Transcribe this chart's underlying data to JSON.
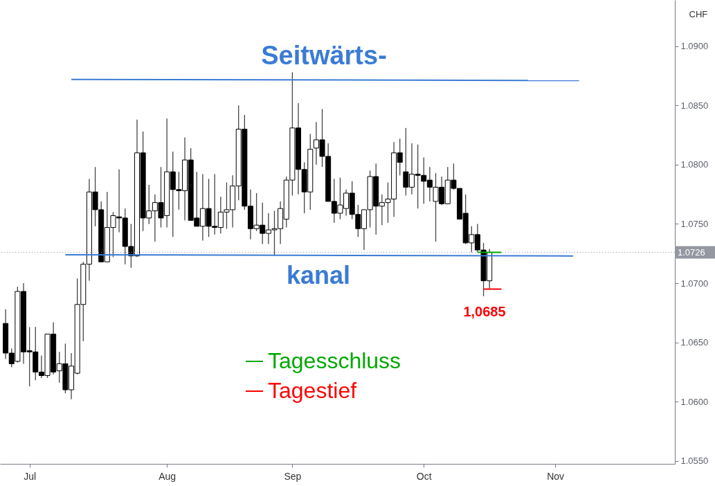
{
  "chart_data": {
    "type": "candlestick",
    "ylabel": "CHF",
    "categories": [
      null,
      null,
      null,
      null,
      "Jul",
      null,
      null,
      null,
      null,
      null,
      null,
      null,
      null,
      null,
      null,
      null,
      null,
      null,
      null,
      null,
      null,
      null,
      null,
      null,
      null,
      null,
      null,
      "Aug",
      null,
      null,
      null,
      null,
      null,
      null,
      null,
      null,
      null,
      null,
      null,
      null,
      null,
      null,
      null,
      null,
      null,
      null,
      null,
      null,
      "Sep",
      null,
      null,
      null,
      null,
      null,
      null,
      null,
      null,
      null,
      null,
      null,
      null,
      null,
      null,
      null,
      null,
      null,
      null,
      null,
      null,
      null,
      "Oct",
      null,
      null,
      null,
      null,
      null,
      null,
      null,
      null,
      null,
      null,
      null,
      null,
      null,
      null,
      null,
      null,
      null,
      null,
      null,
      null,
      null,
      "Nov",
      null,
      null,
      null,
      null,
      null,
      null,
      null,
      null,
      null,
      null,
      null,
      null,
      null,
      null,
      null,
      null,
      null,
      null,
      null
    ],
    "ohlc": [
      [
        1.0666,
        1.0678,
        1.0636,
        1.0641
      ],
      [
        1.0641,
        1.0645,
        1.0629,
        1.0632
      ],
      [
        1.0634,
        1.0697,
        1.0633,
        1.0693
      ],
      [
        1.0693,
        1.07,
        1.0632,
        1.0642
      ],
      [
        1.0643,
        1.0663,
        1.0613,
        1.0642
      ],
      [
        1.0642,
        1.0663,
        1.0618,
        1.0625
      ],
      [
        1.0625,
        1.0639,
        1.062,
        1.0622
      ],
      [
        1.0622,
        1.0657,
        1.062,
        1.0657
      ],
      [
        1.0657,
        1.0667,
        1.0623,
        1.0625
      ],
      [
        1.0626,
        1.0642,
        1.0616,
        1.0632
      ],
      [
        1.0632,
        1.0649,
        1.0607,
        1.061
      ],
      [
        1.061,
        1.0641,
        1.0602,
        1.063
      ],
      [
        1.0624,
        1.0704,
        1.0623,
        1.0682
      ],
      [
        1.0682,
        1.0718,
        1.0651,
        1.0716
      ],
      [
        1.0716,
        1.0788,
        1.0702,
        1.0777
      ],
      [
        1.0777,
        1.0798,
        1.0748,
        1.0762
      ],
      [
        1.0762,
        1.0769,
        1.0718,
        1.0718
      ],
      [
        1.0718,
        1.0777,
        1.0718,
        1.0747
      ],
      [
        1.0747,
        1.076,
        1.0722,
        1.0757
      ],
      [
        1.0756,
        1.0796,
        1.0743,
        1.0755
      ],
      [
        1.0755,
        1.0763,
        1.0716,
        1.0731
      ],
      [
        1.0731,
        1.075,
        1.0713,
        1.0723
      ],
      [
        1.0723,
        1.0838,
        1.0722,
        1.081
      ],
      [
        1.081,
        1.0828,
        1.0744,
        1.0755
      ],
      [
        1.0755,
        1.0783,
        1.075,
        1.0761
      ],
      [
        1.0761,
        1.0775,
        1.0735,
        1.0768
      ],
      [
        1.0768,
        1.0798,
        1.0747,
        1.0755
      ],
      [
        1.0757,
        1.0839,
        1.0747,
        1.0794
      ],
      [
        1.0794,
        1.0811,
        1.0739,
        1.0779
      ],
      [
        1.0779,
        1.0794,
        1.0762,
        1.0778
      ],
      [
        1.0778,
        1.0823,
        1.0753,
        1.0804
      ],
      [
        1.0804,
        1.0814,
        1.0753,
        1.0753
      ],
      [
        1.0755,
        1.0794,
        1.0748,
        1.0748
      ],
      [
        1.0748,
        1.0792,
        1.0736,
        1.0763
      ],
      [
        1.0763,
        1.0788,
        1.0739,
        1.0748
      ],
      [
        1.0748,
        1.0792,
        1.0741,
        1.0747
      ],
      [
        1.0747,
        1.0773,
        1.0742,
        1.076
      ],
      [
        1.076,
        1.0785,
        1.0746,
        1.0762
      ],
      [
        1.0762,
        1.0791,
        1.0747,
        1.0782
      ],
      [
        1.0782,
        1.085,
        1.077,
        1.083
      ],
      [
        1.083,
        1.0842,
        1.0762,
        1.0765
      ],
      [
        1.0765,
        1.0779,
        1.0737,
        1.0746
      ],
      [
        1.0746,
        1.0776,
        1.0744,
        1.0749
      ],
      [
        1.0749,
        1.0768,
        1.0733,
        1.0742
      ],
      [
        1.0742,
        1.0759,
        1.0733,
        1.0745
      ],
      [
        1.0745,
        1.0761,
        1.0723,
        1.0746
      ],
      [
        1.0746,
        1.0769,
        1.0733,
        1.0763
      ],
      [
        1.0754,
        1.079,
        1.0747,
        1.0787
      ],
      [
        1.0787,
        1.0878,
        1.0774,
        1.0831
      ],
      [
        1.0831,
        1.0852,
        1.0775,
        1.0796
      ],
      [
        1.0796,
        1.0802,
        1.0759,
        1.0777
      ],
      [
        1.0777,
        1.0826,
        1.0762,
        1.0813
      ],
      [
        1.0814,
        1.0836,
        1.08,
        1.0821
      ],
      [
        1.0821,
        1.0847,
        1.0798,
        1.0807
      ],
      [
        1.0807,
        1.0818,
        1.0769,
        1.0769
      ],
      [
        1.0769,
        1.0788,
        1.0751,
        1.0759
      ],
      [
        1.0759,
        1.0789,
        1.0754,
        1.0766
      ],
      [
        1.0763,
        1.0779,
        1.0757,
        1.0776
      ],
      [
        1.0776,
        1.0786,
        1.0754,
        1.0758
      ],
      [
        1.0758,
        1.0766,
        1.0739,
        1.0746
      ],
      [
        1.0746,
        1.0762,
        1.0728,
        1.0762
      ],
      [
        1.0762,
        1.0795,
        1.0747,
        1.079
      ],
      [
        1.079,
        1.0801,
        1.0741,
        1.0765
      ],
      [
        1.0765,
        1.0775,
        1.0749,
        1.0768
      ],
      [
        1.0768,
        1.0785,
        1.0751,
        1.0771
      ],
      [
        1.0771,
        1.0819,
        1.0756,
        1.081
      ],
      [
        1.081,
        1.0822,
        1.0791,
        1.0802
      ],
      [
        1.0794,
        1.0831,
        1.0774,
        1.0781
      ],
      [
        1.0781,
        1.0818,
        1.0775,
        1.0792
      ],
      [
        1.0792,
        1.0817,
        1.0763,
        1.0791
      ],
      [
        1.0791,
        1.0806,
        1.0767,
        1.0786
      ],
      [
        1.0787,
        1.0798,
        1.0769,
        1.0781
      ],
      [
        1.0769,
        1.0793,
        1.0735,
        1.0781
      ],
      [
        1.0781,
        1.079,
        1.0766,
        1.0767
      ],
      [
        1.0767,
        1.0798,
        1.0767,
        1.0787
      ],
      [
        1.0787,
        1.0801,
        1.0779,
        1.078
      ],
      [
        1.078,
        1.078,
        1.0754,
        1.0754
      ],
      [
        1.0759,
        1.0775,
        1.0733,
        1.0734
      ],
      [
        1.0734,
        1.0748,
        1.0726,
        1.0741
      ],
      [
        1.0741,
        1.075,
        1.0726,
        1.0728
      ],
      [
        1.0728,
        1.0734,
        1.0689,
        1.0702
      ],
      [
        1.0702,
        1.0729,
        1.0695,
        1.0726
      ],
      null,
      null,
      null,
      null,
      null,
      null,
      null,
      null,
      null,
      null,
      null,
      null,
      null,
      null,
      null,
      null,
      null,
      null,
      null,
      null,
      null,
      null,
      null,
      null,
      null,
      null,
      null,
      null,
      null,
      null
    ],
    "colors": [
      "#000000",
      "#000000",
      "#ffffff",
      "#000000",
      "#000000",
      "#000000",
      "#000000",
      "#ffffff",
      "#000000",
      "#ffffff",
      "#000000",
      "#ffffff",
      "#ffffff",
      "#ffffff",
      "#ffffff",
      "#000000",
      "#000000",
      "#ffffff",
      "#ffffff",
      "#000000",
      "#000000",
      "#000000",
      "#ffffff",
      "#000000",
      "#ffffff",
      "#ffffff",
      "#000000",
      "#ffffff",
      "#000000",
      "#000000",
      "#ffffff",
      "#000000",
      "#000000",
      "#ffffff",
      "#000000",
      "#000000",
      "#ffffff",
      "#ffffff",
      "#ffffff",
      "#ffffff",
      "#000000",
      "#000000",
      "#ffffff",
      "#000000",
      "#ffffff",
      "#ffffff",
      "#ffffff",
      "#ffffff",
      "#ffffff",
      "#000000",
      "#000000",
      "#ffffff",
      "#ffffff",
      "#000000",
      "#000000",
      "#000000",
      "#ffffff",
      "#ffffff",
      "#000000",
      "#000000",
      "#ffffff",
      "#ffffff",
      "#000000",
      "#ffffff",
      "#ffffff",
      "#ffffff",
      "#000000",
      "#000000",
      "#ffffff",
      "#000000",
      "#000000",
      "#000000",
      "#ffffff",
      "#000000",
      "#ffffff",
      "#000000",
      "#000000",
      "#000000",
      "#ffffff",
      "#000000",
      "#000000",
      "#ffffff",
      null,
      null,
      null,
      null,
      null,
      null,
      null,
      null,
      null,
      null,
      null,
      null,
      null,
      null,
      null,
      null,
      null,
      null,
      null,
      null,
      null,
      null,
      null,
      null,
      null,
      null,
      null,
      null,
      null,
      null
    ],
    "series": [
      {
        "type": "line",
        "color": "#3a7bd5",
        "values": [
          null,
          null,
          null,
          null,
          null,
          null,
          null,
          null,
          null,
          null,
          null,
          1.0872,
          null,
          null,
          null,
          null,
          null,
          null,
          null,
          null,
          null,
          null,
          null,
          null,
          null,
          null,
          null,
          null,
          null,
          null,
          null,
          null,
          null,
          null,
          null,
          null,
          null,
          null,
          null,
          null,
          null,
          null,
          null,
          null,
          null,
          null,
          null,
          null,
          null,
          null,
          null,
          null,
          null,
          null,
          null,
          null,
          null,
          null,
          null,
          null,
          null,
          null,
          null,
          null,
          null,
          null,
          null,
          null,
          null,
          null,
          null,
          null,
          null,
          null,
          null,
          null,
          null,
          null,
          null,
          null,
          null,
          null,
          null,
          null,
          null,
          null,
          null,
          null,
          null,
          null,
          null,
          null,
          null,
          null,
          null,
          null,
          1.0871,
          null,
          null,
          null,
          null,
          null,
          null,
          null,
          null,
          null,
          null,
          null,
          null,
          null,
          null,
          null
        ]
      },
      {
        "type": "line",
        "color": "#3a7bd5",
        "values": [
          null,
          null,
          null,
          null,
          null,
          null,
          null,
          null,
          null,
          null,
          1.0724,
          null,
          null,
          null,
          null,
          null,
          null,
          null,
          null,
          null,
          null,
          null,
          null,
          null,
          null,
          null,
          null,
          null,
          null,
          null,
          null,
          null,
          null,
          null,
          null,
          null,
          null,
          null,
          null,
          null,
          null,
          null,
          null,
          null,
          null,
          null,
          null,
          null,
          null,
          null,
          null,
          null,
          null,
          null,
          null,
          null,
          null,
          null,
          null,
          null,
          null,
          null,
          null,
          null,
          null,
          null,
          null,
          null,
          null,
          null,
          null,
          null,
          null,
          null,
          null,
          null,
          null,
          null,
          null,
          null,
          null,
          null,
          null,
          null,
          null,
          null,
          null,
          null,
          null,
          null,
          null,
          null,
          null,
          null,
          null,
          1.0723,
          null,
          null,
          null,
          null,
          null,
          null,
          null,
          null,
          null,
          null,
          null,
          null,
          null,
          null,
          null,
          null
        ]
      },
      {
        "type": "line",
        "name": "Tagesschluss",
        "color": "#00a800",
        "values": [
          null,
          null,
          null,
          null,
          null,
          null,
          null,
          null,
          null,
          null,
          null,
          null,
          null,
          null,
          null,
          null,
          null,
          null,
          null,
          null,
          null,
          null,
          null,
          null,
          null,
          null,
          null,
          null,
          null,
          null,
          null,
          null,
          null,
          null,
          null,
          null,
          null,
          null,
          null,
          null,
          null,
          null,
          null,
          null,
          null,
          null,
          null,
          null,
          null,
          null,
          null,
          null,
          null,
          null,
          null,
          null,
          null,
          null,
          null,
          null,
          null,
          null,
          null,
          null,
          null,
          null,
          null,
          null,
          null,
          null,
          null,
          null,
          null,
          null,
          null,
          null,
          null,
          null,
          null,
          1.0726,
          null,
          null,
          null,
          1.0726,
          null,
          null,
          null,
          null,
          null,
          null,
          null,
          null,
          null,
          null,
          null,
          null,
          null,
          null,
          null,
          null,
          null,
          null,
          null,
          null,
          null,
          null,
          null,
          null,
          null,
          null,
          null,
          null
        ]
      },
      {
        "type": "line",
        "name": "Tagestief",
        "color": "#ff0000",
        "values": [
          null,
          null,
          null,
          null,
          null,
          null,
          null,
          null,
          null,
          null,
          null,
          null,
          null,
          null,
          null,
          null,
          null,
          null,
          null,
          null,
          null,
          null,
          null,
          null,
          null,
          null,
          null,
          null,
          null,
          null,
          null,
          null,
          null,
          null,
          null,
          null,
          null,
          null,
          null,
          null,
          null,
          null,
          null,
          null,
          null,
          null,
          null,
          null,
          null,
          null,
          null,
          null,
          null,
          null,
          null,
          null,
          null,
          null,
          null,
          null,
          null,
          null,
          null,
          null,
          null,
          null,
          null,
          null,
          null,
          null,
          null,
          null,
          null,
          null,
          null,
          null,
          null,
          null,
          null,
          null,
          1.0695,
          null,
          null,
          1.0695,
          null,
          null,
          null,
          null,
          null,
          null,
          null,
          null,
          null,
          null,
          null,
          null,
          null,
          null,
          null,
          null,
          null,
          null,
          null,
          null,
          null,
          null,
          null,
          null,
          null,
          null,
          null,
          null
        ]
      }
    ],
    "annotations": [
      "Seitwärts-",
      "kanal",
      "1,0685"
    ],
    "ref_lines": [
      {
        "axis": "y",
        "value": 1.0726,
        "label": "1.0726",
        "color": "#9598a1",
        "line_style": "dotted"
      }
    ],
    "legend": "bottom",
    "ylim": [
      1.05475,
      1.0939
    ],
    "yticks": [
      {
        "value": 1.055,
        "label": "1.0550"
      },
      {
        "value": 1.06,
        "label": "1.0600"
      },
      {
        "value": 1.065,
        "label": "1.0650"
      },
      {
        "value": 1.07,
        "label": "1.0700"
      },
      {
        "value": 1.075,
        "label": "1.0750"
      },
      {
        "value": 1.08,
        "label": "1.0800"
      },
      {
        "value": 1.085,
        "label": "1.0850"
      },
      {
        "value": 1.09,
        "label": "1.0900"
      }
    ]
  }
}
